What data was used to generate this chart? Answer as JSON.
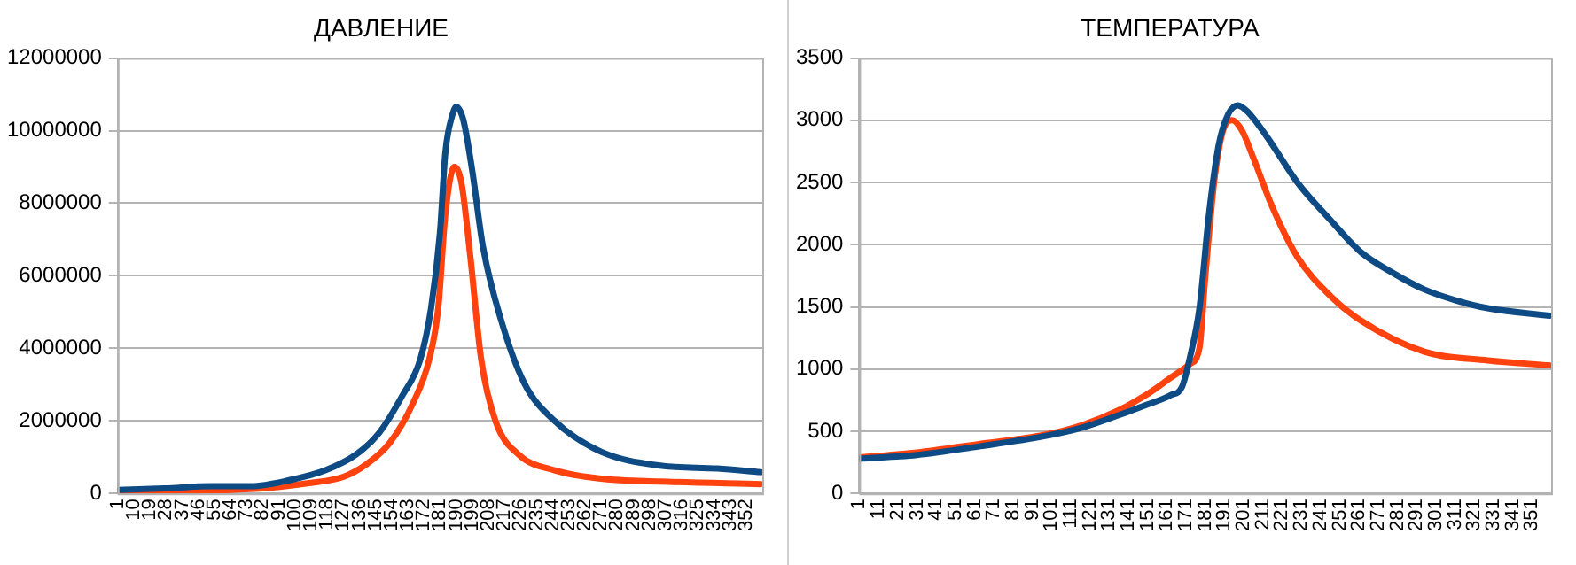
{
  "chart_data": [
    {
      "type": "line",
      "title": "ДАВЛЕНИЕ",
      "xlim": [
        1,
        361
      ],
      "xticks": [
        1,
        10,
        19,
        28,
        37,
        46,
        55,
        64,
        73,
        82,
        91,
        100,
        109,
        118,
        127,
        136,
        145,
        154,
        163,
        172,
        181,
        190,
        199,
        208,
        217,
        226,
        235,
        244,
        253,
        262,
        271,
        280,
        289,
        298,
        307,
        316,
        325,
        334,
        343,
        352
      ],
      "ylim": [
        0,
        12000000
      ],
      "yticks": [
        0,
        2000000,
        4000000,
        6000000,
        8000000,
        10000000,
        12000000
      ],
      "grid": "y",
      "marker": "none",
      "line_style": "solid",
      "series": [
        {
          "color": "#0e4a84",
          "x": [
            1,
            27,
            53,
            75,
            98,
            117,
            134,
            147,
            160,
            170,
            176,
            181,
            184,
            188,
            190,
            194,
            199,
            205,
            215,
            228,
            245,
            271,
            304,
            336,
            360
          ],
          "values": [
            100000,
            140000,
            200000,
            200000,
            380000,
            640000,
            1070000,
            1670000,
            2700000,
            3700000,
            5100000,
            7200000,
            9400000,
            10450000,
            10660000,
            10300000,
            8900000,
            6800000,
            4800000,
            3050000,
            2000000,
            1150000,
            770000,
            690000,
            590000
          ]
        },
        {
          "color": "#ff420e",
          "x": [
            1,
            75,
            108,
            127,
            140,
            153,
            166,
            175,
            180,
            184,
            189,
            193,
            198,
            204,
            212,
            225,
            245,
            271,
            304,
            360
          ],
          "values": [
            50000,
            120000,
            290000,
            460000,
            810000,
            1400000,
            2500000,
            3700000,
            5100000,
            7700000,
            9000000,
            8560000,
            6500000,
            3700000,
            2000000,
            1070000,
            640000,
            410000,
            330000,
            260000
          ]
        }
      ]
    },
    {
      "type": "line",
      "title": "ТЕМПЕРАТУРА",
      "xlim": [
        1,
        361
      ],
      "xticks": [
        1,
        11,
        21,
        31,
        41,
        51,
        61,
        71,
        81,
        91,
        101,
        111,
        121,
        131,
        141,
        151,
        161,
        171,
        181,
        191,
        201,
        211,
        221,
        231,
        241,
        251,
        261,
        271,
        281,
        291,
        301,
        311,
        321,
        331,
        341,
        351
      ],
      "ylim": [
        0,
        3500
      ],
      "yticks": [
        0,
        500,
        1000,
        1500,
        2000,
        2500,
        3000,
        3500
      ],
      "grid": "y",
      "marker": "none",
      "line_style": "solid",
      "series": [
        {
          "color": "#0e4a84",
          "x": [
            1,
            31,
            64,
            97,
            117,
            136,
            150,
            163,
            169,
            173,
            178,
            183,
            188,
            193,
            198,
            203,
            213,
            229,
            246,
            262,
            279,
            295,
            312,
            328,
            360
          ],
          "values": [
            280,
            310,
            380,
            460,
            530,
            630,
            710,
            790,
            860,
            1090,
            1490,
            2250,
            2800,
            3050,
            3120,
            3070,
            2870,
            2500,
            2200,
            1940,
            1770,
            1640,
            1550,
            1490,
            1430
          ]
        },
        {
          "color": "#ff420e",
          "x": [
            1,
            31,
            64,
            97,
            117,
            136,
            150,
            163,
            173,
            178,
            181,
            186,
            191,
            195,
            200,
            206,
            216,
            229,
            246,
            262,
            295,
            328,
            360
          ],
          "values": [
            290,
            330,
            400,
            470,
            550,
            670,
            790,
            930,
            1040,
            1170,
            1740,
            2550,
            2950,
            3000,
            2920,
            2700,
            2300,
            1900,
            1590,
            1390,
            1140,
            1070,
            1030
          ]
        }
      ]
    }
  ]
}
